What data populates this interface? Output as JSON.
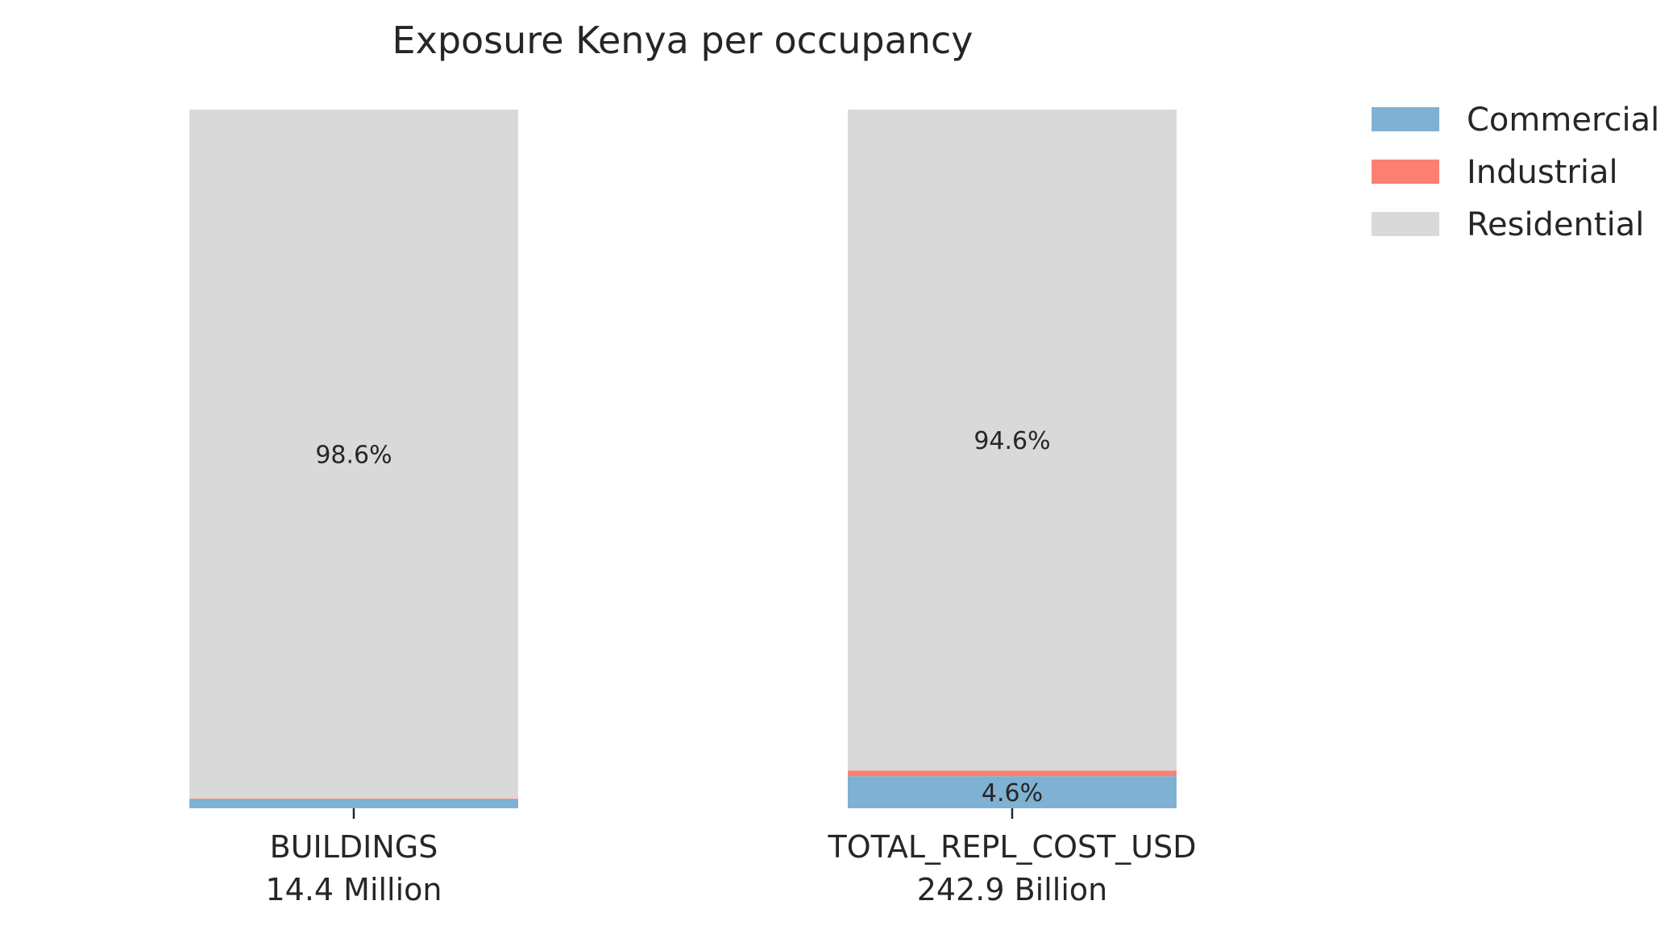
{
  "chart_data": {
    "type": "bar",
    "stacked": true,
    "normalized_percent": true,
    "title": "Exposure Kenya per occupancy",
    "categories": [
      "BUILDINGS",
      "TOTAL_REPL_COST_USD"
    ],
    "category_totals": [
      "14.4 Million",
      "242.9 Billion"
    ],
    "ylim": [
      0,
      100
    ],
    "grid": false,
    "legend_position": "top-right",
    "series": [
      {
        "name": "Commercial",
        "color": "#7fb1d3",
        "values": [
          1.3,
          4.6
        ],
        "labels": [
          "",
          "4.6%"
        ]
      },
      {
        "name": "Industrial",
        "color": "#fb8072",
        "values": [
          0.1,
          0.8
        ],
        "labels": [
          "",
          ""
        ]
      },
      {
        "name": "Residential",
        "color": "#d9d9d9",
        "values": [
          98.6,
          94.6
        ],
        "labels": [
          "98.6%",
          "94.6%"
        ]
      }
    ]
  }
}
